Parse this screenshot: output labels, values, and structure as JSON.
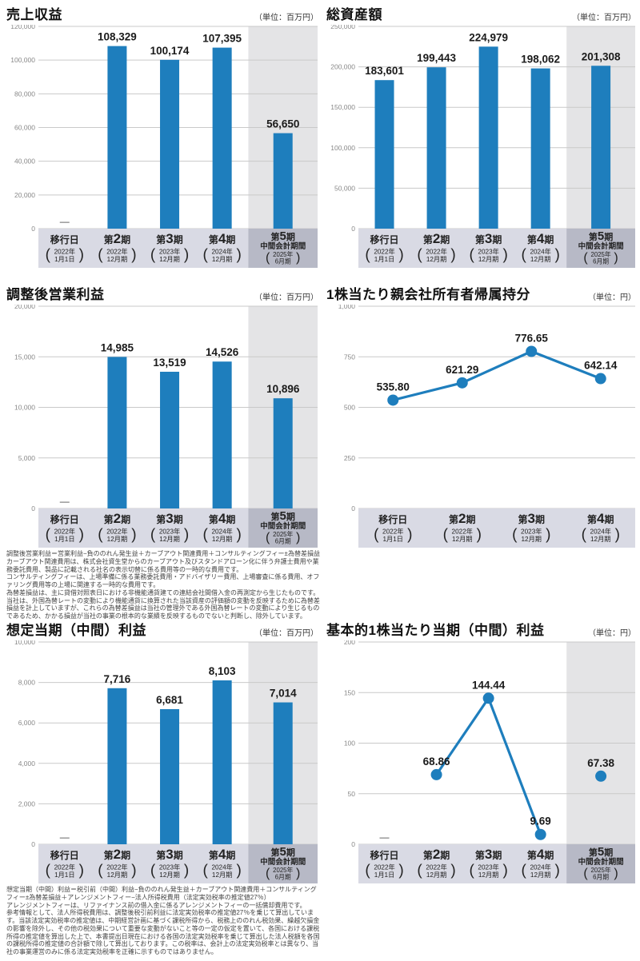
{
  "colors": {
    "series_blue": "#1e7ebd",
    "grid_line": "#c9c9c9",
    "highlight_column_bg": "#e4e4e6",
    "label_band_bg": "#d9dae4",
    "label_band_highlight_bg": "#b7b9c6",
    "tick_text": "#888888",
    "value_text": "#1a1a1a",
    "category_text": "#222222"
  },
  "chart_data": [
    {
      "type": "bar",
      "title": "売上収益",
      "unit_label": "（単位：百万円）",
      "ylim": [
        0,
        120000
      ],
      "y_max": 120000,
      "y_ticks": [
        "120,000",
        "100,000",
        "80,000",
        "60,000",
        "40,000",
        "20,000",
        "0"
      ],
      "grid": true,
      "highlight_last_column": true,
      "categories": [
        {
          "name": "移行日",
          "paren": [
            "2022年",
            "1月1日"
          ]
        },
        {
          "name": "第2期",
          "paren": [
            "2022年",
            "12月期"
          ]
        },
        {
          "name": "第3期",
          "paren": [
            "2023年",
            "12月期"
          ]
        },
        {
          "name": "第4期",
          "paren": [
            "2024年",
            "12月期"
          ]
        },
        {
          "name": "第5期",
          "sub": "中間会計期間",
          "paren": [
            "2025年",
            "6月期"
          ]
        }
      ],
      "values": [
        null,
        108329,
        100174,
        107395,
        56650
      ],
      "value_labels": [
        "—",
        "108,329",
        "100,174",
        "107,395",
        "56,650"
      ]
    },
    {
      "type": "bar",
      "title": "総資産額",
      "unit_label": "（単位：百万円）",
      "ylim": [
        0,
        250000
      ],
      "y_max": 250000,
      "y_ticks": [
        "250,000",
        "200,000",
        "150,000",
        "100,000",
        "50,000",
        "0"
      ],
      "grid": true,
      "highlight_last_column": true,
      "categories": [
        {
          "name": "移行日",
          "paren": [
            "2022年",
            "1月1日"
          ]
        },
        {
          "name": "第2期",
          "paren": [
            "2022年",
            "12月期"
          ]
        },
        {
          "name": "第3期",
          "paren": [
            "2023年",
            "12月期"
          ]
        },
        {
          "name": "第4期",
          "paren": [
            "2024年",
            "12月期"
          ]
        },
        {
          "name": "第5期",
          "sub": "中間会計期間",
          "paren": [
            "2025年",
            "6月期"
          ]
        }
      ],
      "values": [
        183601,
        199443,
        224979,
        198062,
        201308
      ],
      "value_labels": [
        "183,601",
        "199,443",
        "224,979",
        "198,062",
        "201,308"
      ]
    },
    {
      "type": "bar",
      "title": "調整後営業利益",
      "unit_label": "（単位：百万円）",
      "ylim": [
        0,
        20000
      ],
      "y_max": 20000,
      "y_ticks": [
        "20,000",
        "15,000",
        "10,000",
        "5,000",
        "0"
      ],
      "grid": true,
      "highlight_last_column": true,
      "categories": [
        {
          "name": "移行日",
          "paren": [
            "2022年",
            "1月1日"
          ]
        },
        {
          "name": "第2期",
          "paren": [
            "2022年",
            "12月期"
          ]
        },
        {
          "name": "第3期",
          "paren": [
            "2023年",
            "12月期"
          ]
        },
        {
          "name": "第4期",
          "paren": [
            "2024年",
            "12月期"
          ]
        },
        {
          "name": "第5期",
          "sub": "中間会計期間",
          "paren": [
            "2025年",
            "6月期"
          ]
        }
      ],
      "values": [
        null,
        14985,
        13519,
        14526,
        10896
      ],
      "value_labels": [
        "—",
        "14,985",
        "13,519",
        "14,526",
        "10,896"
      ]
    },
    {
      "type": "line",
      "title": "1株当たり親会社所有者帰属持分",
      "unit_label": "（単位：円）",
      "ylim": [
        0,
        1000
      ],
      "y_max": 1000,
      "y_ticks": [
        "1,000",
        "750",
        "500",
        "250",
        "0"
      ],
      "grid": true,
      "highlight_last_column": false,
      "categories": [
        {
          "name": "移行日",
          "paren": [
            "2022年",
            "1月1日"
          ]
        },
        {
          "name": "第2期",
          "paren": [
            "2022年",
            "12月期"
          ]
        },
        {
          "name": "第3期",
          "paren": [
            "2023年",
            "12月期"
          ]
        },
        {
          "name": "第4期",
          "paren": [
            "2024年",
            "12月期"
          ]
        }
      ],
      "values": [
        535.8,
        621.29,
        776.65,
        642.14
      ],
      "value_labels": [
        "535.80",
        "621.29",
        "776.65",
        "642.14"
      ]
    },
    {
      "type": "bar",
      "title": "想定当期（中間）利益",
      "unit_label": "（単位：百万円）",
      "ylim": [
        0,
        10000
      ],
      "y_max": 10000,
      "y_ticks": [
        "10,000",
        "8,000",
        "6,000",
        "4,000",
        "2,000",
        "0"
      ],
      "grid": true,
      "highlight_last_column": true,
      "categories": [
        {
          "name": "移行日",
          "paren": [
            "2022年",
            "1月1日"
          ]
        },
        {
          "name": "第2期",
          "paren": [
            "2022年",
            "12月期"
          ]
        },
        {
          "name": "第3期",
          "paren": [
            "2023年",
            "12月期"
          ]
        },
        {
          "name": "第4期",
          "paren": [
            "2024年",
            "12月期"
          ]
        },
        {
          "name": "第5期",
          "sub": "中間会計期間",
          "paren": [
            "2025年",
            "6月期"
          ]
        }
      ],
      "values": [
        null,
        7716,
        6681,
        8103,
        7014
      ],
      "value_labels": [
        "—",
        "7,716",
        "6,681",
        "8,103",
        "7,014"
      ]
    },
    {
      "type": "line",
      "title": "基本的1株当たり当期（中間）利益",
      "unit_label": "（単位：円）",
      "ylim": [
        0,
        200
      ],
      "y_max": 200,
      "y_ticks": [
        "200",
        "150",
        "100",
        "50",
        "0"
      ],
      "grid": true,
      "highlight_last_column": true,
      "line_gaps": [
        [
          3,
          4
        ]
      ],
      "categories": [
        {
          "name": "移行日",
          "paren": [
            "2022年",
            "1月1日"
          ]
        },
        {
          "name": "第2期",
          "paren": [
            "2022年",
            "12月期"
          ]
        },
        {
          "name": "第3期",
          "paren": [
            "2023年",
            "12月期"
          ]
        },
        {
          "name": "第4期",
          "paren": [
            "2024年",
            "12月期"
          ]
        },
        {
          "name": "第5期",
          "sub": "中間会計期間",
          "paren": [
            "2025年",
            "6月期"
          ]
        }
      ],
      "values": [
        null,
        68.86,
        144.44,
        9.69,
        67.38
      ],
      "value_labels": [
        "—",
        "68.86",
        "144.44",
        "9.69",
        "67.38"
      ]
    }
  ],
  "footnotes": {
    "adjusted_operating_income": [
      "調整後営業利益＝営業利益−負ののれん発生益＋カーブアウト関連費用＋コンサルティングフィー±為替差損益",
      "カーブアウト関連費用は、株式会社資生堂からのカーブアウト及びスタンドアローン化に伴う弁護士費用や業務委託費用、製品に記載される社名の表示切替に係る費用等の一時的な費用です。",
      "コンサルティングフィーは、上場準備に係る業務委託費用・アドバイザリー費用、上場審査に係る費用、オファリング費用等の上場に関連する一時的な費用です。",
      "為替差損益は、主に貸借対照表日における非機能通貨建ての連結会社間借入金の再測定から生じたものです。当社は、外国為替レートの変動により機能通貨に換算された当該資産の評価額の変動を反映するために為替差損益を計上していますが、これらの為替差損益は当社の管理外である外国為替レートの変動により生じるものであるため、かかる損益が当社の事業の根本的な業績を反映するものでないと判断し、除外しています。"
    ],
    "estimated_net_income": [
      "想定当期（中間）利益＝税引前（中間）利益−負ののれん発生益＋カーブアウト関連費用＋コンサルティングフィー±為替差損益＋アレンジメントフィー−法人所得税費用（法定実効税率の推定値27％）",
      "アレンジメントフィーは、リファイナンス前の借入金に係るアレンジメントフィーの一括償却費用です。",
      "参考情報として、法人所得税費用は、調整後税引前利益に法定実効税率の推定値27％を乗じて算出しています。当該法定実効税率の推定値は、中期経営計画に基づく課税所得から、税務上ののれん税効果、繰越欠損金の影響を除外し、その他の税効果について重要な変動がないこと等の一定の仮定を置いて、各国における課税所得の推定値を算出した上で、本書提出日現在における各国の法定実効税率を乗じて算出した法人税額を各国の課税所得の推定値の合計額で除して算出しております。この税率は、会計上の法定実効税率とは異なり、当社の事業運営のみに係る法定実効税率を正確に示すものではありません。"
    ]
  }
}
